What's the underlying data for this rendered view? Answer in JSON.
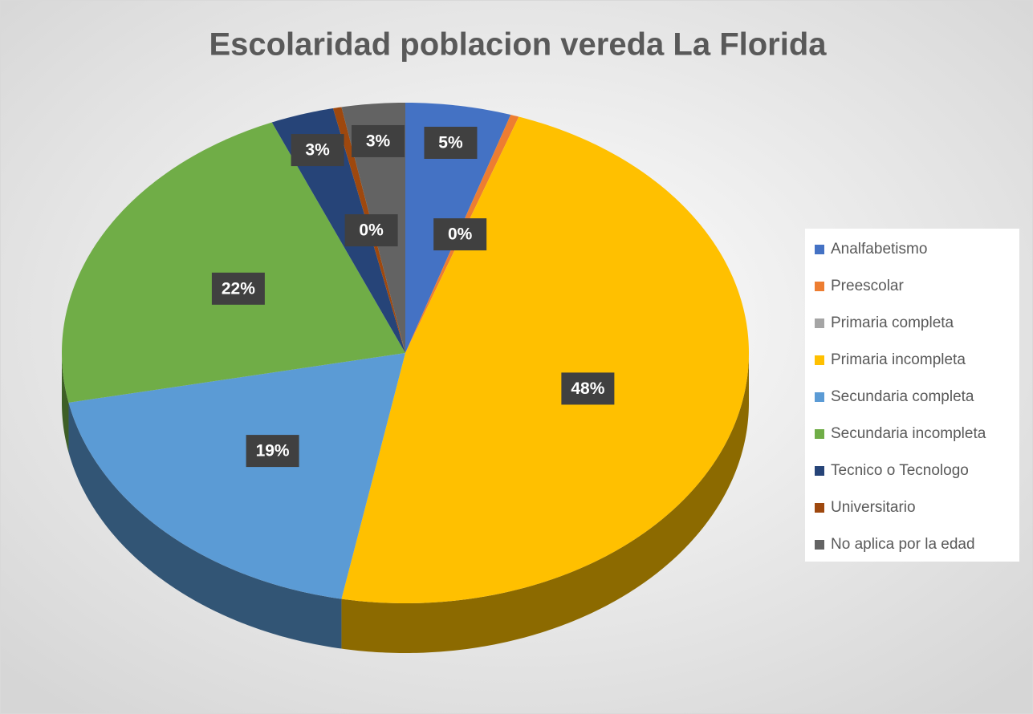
{
  "chart_data": {
    "type": "pie3d",
    "title": "Escolaridad poblacion vereda La Florida",
    "categories": [
      "Analfabetismo",
      "Preescolar",
      "Primaria completa",
      "Primaria incompleta",
      "Secundaria completa",
      "Secundaria incompleta",
      "Tecnico o Tecnologo",
      "Universitario",
      "No aplica por la edad"
    ],
    "values": [
      5,
      0.4,
      0,
      48,
      19,
      22,
      3,
      0.4,
      3
    ],
    "value_labels": [
      "5%",
      "0%",
      null,
      "48%",
      "19%",
      "22%",
      "3%",
      "0%",
      "3%"
    ],
    "colors": [
      "#4472c4",
      "#ed7d31",
      "#a5a5a5",
      "#ffc000",
      "#5b9bd5",
      "#70ad47",
      "#264478",
      "#9e480e",
      "#636363"
    ],
    "legend": "right"
  }
}
